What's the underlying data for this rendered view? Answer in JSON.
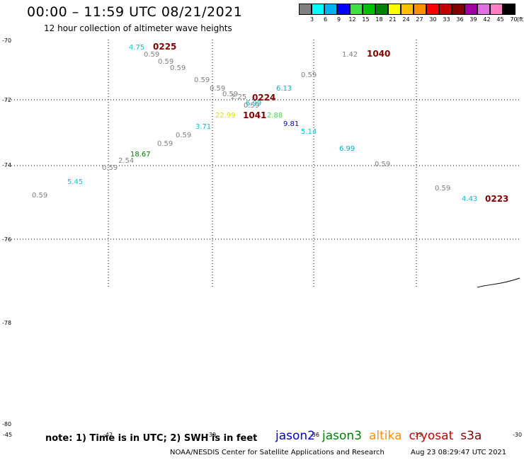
{
  "header": {
    "title": "00:00 – 11:59 UTC 08/21/2021",
    "subtitle": "12 hour collection of altimeter wave heights"
  },
  "colorbar": {
    "unit": "(ft)",
    "swatches": [
      {
        "color": "#808080",
        "label": "3"
      },
      {
        "color": "#00ffff",
        "label": "6"
      },
      {
        "color": "#00b0f0",
        "label": "9"
      },
      {
        "color": "#0000ff",
        "label": "12"
      },
      {
        "color": "#40e040",
        "label": "15"
      },
      {
        "color": "#00c000",
        "label": "18"
      },
      {
        "color": "#008000",
        "label": "21"
      },
      {
        "color": "#ffff00",
        "label": "24"
      },
      {
        "color": "#ffc000",
        "label": "27"
      },
      {
        "color": "#ff9000",
        "label": "30"
      },
      {
        "color": "#ff0000",
        "label": "33"
      },
      {
        "color": "#c00000",
        "label": "36"
      },
      {
        "color": "#800000",
        "label": "39"
      },
      {
        "color": "#a000a0",
        "label": "42"
      },
      {
        "color": "#e070e0",
        "label": "45"
      },
      {
        "color": "#ff80c0",
        "label": "70"
      },
      {
        "color": "#000000",
        "label": ""
      }
    ]
  },
  "map": {
    "lat_labels": [
      "-70",
      "-72",
      "-74",
      "-76",
      "-78",
      "-80"
    ],
    "lon_labels": [
      "-45",
      "-42",
      "-39",
      "-36",
      "-33",
      "-30"
    ],
    "readings": [
      {
        "text": "4.75",
        "color": "#00d0d0"
      },
      {
        "text": "0225",
        "color": "#800000"
      },
      {
        "text": "0.59",
        "color": "#808080"
      },
      {
        "text": "0.59",
        "color": "#808080"
      },
      {
        "text": "0.59",
        "color": "#808080"
      },
      {
        "text": "0.59",
        "color": "#808080"
      },
      {
        "text": "0.59",
        "color": "#808080"
      },
      {
        "text": "0.59",
        "color": "#808080"
      },
      {
        "text": "2.25",
        "color": "#808080"
      },
      {
        "text": "0.59",
        "color": "#808080"
      },
      {
        "text": "6.13",
        "color": "#00b0c0"
      },
      {
        "text": "0224",
        "color": "#800000"
      },
      {
        "text": "6.99",
        "color": "#00b0c0"
      },
      {
        "text": "1.42",
        "color": "#808080"
      },
      {
        "text": "1040",
        "color": "#800000"
      },
      {
        "text": "0.59",
        "color": "#808080"
      },
      {
        "text": "22.99",
        "color": "#e0e000"
      },
      {
        "text": "1041",
        "color": "#800000"
      },
      {
        "text": "2.88",
        "color": "#40e040"
      },
      {
        "text": "9.81",
        "color": "#0000c0"
      },
      {
        "text": "5.14",
        "color": "#00c0e0"
      },
      {
        "text": "3.71",
        "color": "#00c0e0"
      },
      {
        "text": "0.59",
        "color": "#808080"
      },
      {
        "text": "0.59",
        "color": "#808080"
      },
      {
        "text": "18.67",
        "color": "#008000"
      },
      {
        "text": "2.54",
        "color": "#808080"
      },
      {
        "text": "6.99",
        "color": "#00b0c0"
      },
      {
        "text": "0.59",
        "color": "#808080"
      },
      {
        "text": "0.59",
        "color": "#808080"
      },
      {
        "text": "5.45",
        "color": "#00d0d0"
      },
      {
        "text": "0.59",
        "color": "#808080"
      },
      {
        "text": "0.59",
        "color": "#808080"
      },
      {
        "text": "4.43",
        "color": "#00c0e0"
      },
      {
        "text": "0223",
        "color": "#800000"
      }
    ]
  },
  "footer": {
    "note": "note: 1) Time is in UTC; 2) SWH is in feet",
    "missions": [
      {
        "name": "jason2",
        "color": "#0000cc"
      },
      {
        "name": "jason3",
        "color": "#008000"
      },
      {
        "name": "altika",
        "color": "#ff9000"
      },
      {
        "name": "cryosat",
        "color": "#cc0000"
      },
      {
        "name": "s3a",
        "color": "#800000"
      }
    ],
    "credit": "NOAA/NESDIS Center for Satellite Applications and Research",
    "timestamp": "Aug 23 08:29:47 UTC 2021"
  }
}
